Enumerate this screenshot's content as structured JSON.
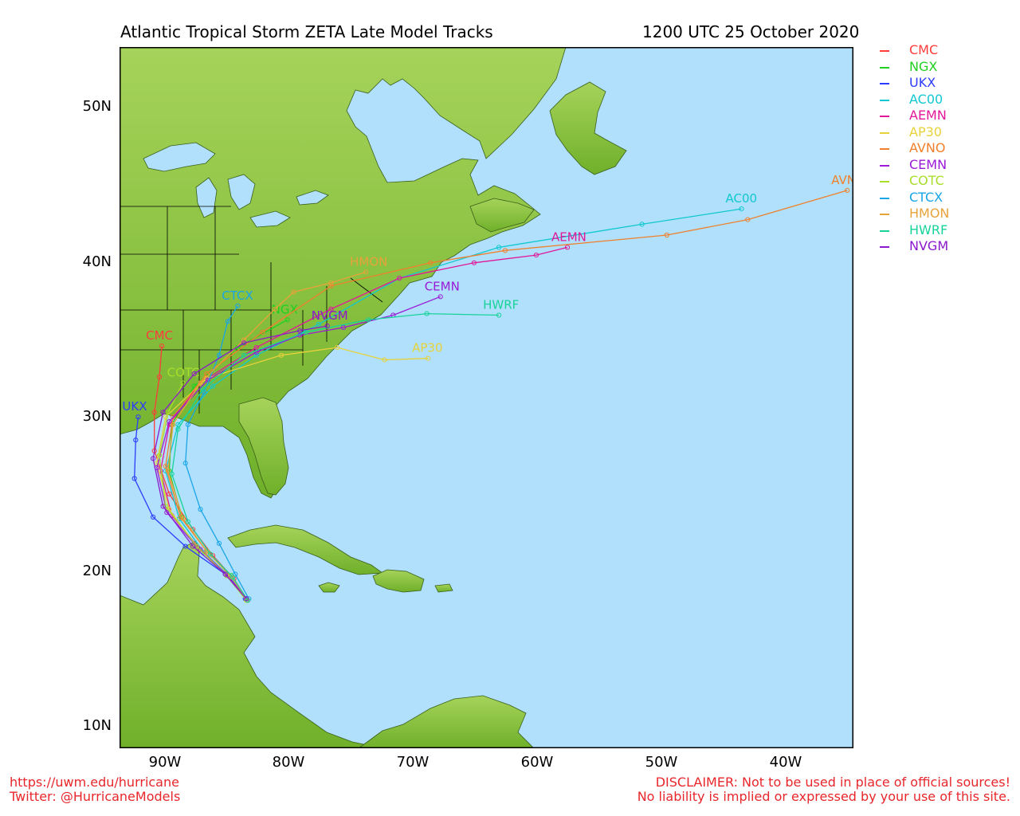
{
  "header": {
    "title": "Atlantic Tropical Storm ZETA Late Model Tracks",
    "datetime": "1200 UTC 25 October 2020"
  },
  "axes": {
    "lat_labels": [
      "10N",
      "20N",
      "30N",
      "40N",
      "50N"
    ],
    "lon_labels": [
      "90W",
      "80W",
      "70W",
      "60W",
      "50W",
      "40W"
    ],
    "lat_range": [
      8.5,
      54
    ],
    "lon_range": [
      -93.5,
      -34.5
    ]
  },
  "colors": {
    "ocean": "#b0e0fb",
    "land": "#8cc63e",
    "border": "#000000"
  },
  "legend": [
    {
      "name": "CMC",
      "color": "#ff3b3b"
    },
    {
      "name": "NGX",
      "color": "#1fd01f"
    },
    {
      "name": "UKX",
      "color": "#2b3cff"
    },
    {
      "name": "AC00",
      "color": "#10c8cf"
    },
    {
      "name": "AEMN",
      "color": "#e2179a"
    },
    {
      "name": "AP30",
      "color": "#e8d23a"
    },
    {
      "name": "AVNO",
      "color": "#f0802c"
    },
    {
      "name": "CEMN",
      "color": "#9a1ad8"
    },
    {
      "name": "COTC",
      "color": "#a8dd2a"
    },
    {
      "name": "CTCX",
      "color": "#19a5e6"
    },
    {
      "name": "HMON",
      "color": "#e8a23a"
    },
    {
      "name": "HWRF",
      "color": "#17d39a"
    },
    {
      "name": "NVGM",
      "color": "#8a18cc"
    }
  ],
  "model_tracks": [
    {
      "model": "CMC",
      "color": "#ff3b3b",
      "label": "CMC",
      "points": [
        [
          18.1,
          -83.2
        ],
        [
          19.5,
          -84.3
        ],
        [
          21.0,
          -86.0
        ],
        [
          22.7,
          -87.6
        ],
        [
          25.0,
          -89.5
        ],
        [
          27.8,
          -90.7
        ],
        [
          30.3,
          -90.7
        ],
        [
          32.6,
          -90.3
        ],
        [
          34.6,
          -90.1
        ]
      ]
    },
    {
      "model": "NGX",
      "color": "#1fd01f",
      "label": "NGX",
      "points": [
        [
          18.2,
          -83.3
        ],
        [
          19.7,
          -84.5
        ],
        [
          21.3,
          -86.5
        ],
        [
          23.5,
          -88.5
        ],
        [
          26.5,
          -89.5
        ],
        [
          29.5,
          -89.3
        ],
        [
          32.0,
          -87.5
        ],
        [
          34.5,
          -84.0
        ],
        [
          36.3,
          -80.0
        ]
      ]
    },
    {
      "model": "UKX",
      "color": "#2b3cff",
      "label": "UKX",
      "points": [
        [
          18.2,
          -83.4
        ],
        [
          19.8,
          -85.0
        ],
        [
          21.6,
          -88.2
        ],
        [
          23.5,
          -90.8
        ],
        [
          26.0,
          -92.3
        ],
        [
          28.5,
          -92.2
        ],
        [
          30.0,
          -92.0
        ]
      ]
    },
    {
      "model": "AC00",
      "color": "#10c8cf",
      "label": "AC00",
      "points": [
        [
          18.1,
          -83.2
        ],
        [
          19.6,
          -84.6
        ],
        [
          21.2,
          -86.7
        ],
        [
          23.4,
          -88.7
        ],
        [
          26.5,
          -89.8
        ],
        [
          29.5,
          -88.8
        ],
        [
          32.0,
          -86.0
        ],
        [
          34.0,
          -82.5
        ],
        [
          36.0,
          -77.5
        ],
        [
          39.0,
          -71.0
        ],
        [
          41.0,
          -63.0
        ],
        [
          42.5,
          -51.5
        ],
        [
          43.5,
          -43.5
        ]
      ]
    },
    {
      "model": "AEMN",
      "color": "#e2179a",
      "label": "AEMN",
      "points": [
        [
          18.2,
          -83.3
        ],
        [
          19.7,
          -84.8
        ],
        [
          21.4,
          -87.0
        ],
        [
          23.6,
          -89.3
        ],
        [
          26.5,
          -90.2
        ],
        [
          29.5,
          -89.5
        ],
        [
          32.2,
          -87.0
        ],
        [
          34.5,
          -82.5
        ],
        [
          37.0,
          -76.5
        ],
        [
          39.0,
          -71.0
        ],
        [
          40.0,
          -65.0
        ],
        [
          40.5,
          -60.0
        ],
        [
          41.0,
          -57.5
        ]
      ]
    },
    {
      "model": "AP30",
      "color": "#e8d23a",
      "label": "AP30",
      "points": [
        [
          18.1,
          -83.3
        ],
        [
          19.7,
          -84.8
        ],
        [
          21.5,
          -87.2
        ],
        [
          24.0,
          -89.5
        ],
        [
          27.0,
          -90.5
        ],
        [
          30.0,
          -89.8
        ],
        [
          32.5,
          -86.5
        ],
        [
          34.0,
          -80.5
        ],
        [
          34.5,
          -76.0
        ],
        [
          33.7,
          -72.2
        ],
        [
          33.8,
          -68.7
        ]
      ]
    },
    {
      "model": "AVNO",
      "color": "#f0802c",
      "label": "AVNO",
      "points": [
        [
          18.1,
          -83.2
        ],
        [
          19.6,
          -84.5
        ],
        [
          21.3,
          -86.5
        ],
        [
          23.5,
          -88.6
        ],
        [
          26.8,
          -89.8
        ],
        [
          30.0,
          -89.2
        ],
        [
          32.8,
          -86.5
        ],
        [
          35.5,
          -82.0
        ],
        [
          38.5,
          -76.5
        ],
        [
          40.0,
          -68.5
        ],
        [
          40.8,
          -62.5
        ],
        [
          41.8,
          -49.5
        ],
        [
          42.8,
          -43.0
        ],
        [
          44.7,
          -35.0
        ]
      ]
    },
    {
      "model": "CEMN",
      "color": "#9a1ad8",
      "label": "CEMN",
      "points": [
        [
          18.2,
          -83.3
        ],
        [
          19.7,
          -84.8
        ],
        [
          21.5,
          -87.2
        ],
        [
          23.8,
          -89.7
        ],
        [
          26.7,
          -90.5
        ],
        [
          29.7,
          -89.5
        ],
        [
          32.4,
          -86.4
        ],
        [
          34.2,
          -82.5
        ],
        [
          35.3,
          -79.0
        ],
        [
          35.8,
          -75.5
        ],
        [
          36.6,
          -71.5
        ],
        [
          37.8,
          -67.7
        ]
      ]
    },
    {
      "model": "COTC",
      "color": "#a8dd2a",
      "label": "COTC",
      "points": [
        [
          18.1,
          -83.3
        ],
        [
          19.7,
          -84.9
        ],
        [
          21.6,
          -87.3
        ],
        [
          24.2,
          -89.8
        ],
        [
          27.5,
          -90.3
        ],
        [
          30.3,
          -89.6
        ],
        [
          32.2,
          -88.4
        ]
      ]
    },
    {
      "model": "CTCX",
      "color": "#19a5e6",
      "label": "CTCX",
      "points": [
        [
          18.2,
          -83.1
        ],
        [
          19.8,
          -84.2
        ],
        [
          21.8,
          -85.5
        ],
        [
          24.0,
          -87.0
        ],
        [
          27.0,
          -88.2
        ],
        [
          29.5,
          -88.0
        ],
        [
          31.6,
          -86.7
        ],
        [
          34.0,
          -85.5
        ],
        [
          36.2,
          -84.8
        ],
        [
          37.2,
          -84.0
        ]
      ]
    },
    {
      "model": "HMON",
      "color": "#e8a23a",
      "label": "HMON",
      "points": [
        [
          18.1,
          -83.2
        ],
        [
          19.6,
          -84.5
        ],
        [
          21.2,
          -86.4
        ],
        [
          23.4,
          -88.4
        ],
        [
          26.5,
          -89.6
        ],
        [
          29.5,
          -89.2
        ],
        [
          32.2,
          -87.0
        ],
        [
          35.0,
          -83.5
        ],
        [
          37.0,
          -81.0
        ],
        [
          38.1,
          -79.5
        ],
        [
          38.7,
          -76.5
        ],
        [
          39.4,
          -73.7
        ]
      ]
    },
    {
      "model": "HWRF",
      "color": "#17d39a",
      "label": "HWRF",
      "points": [
        [
          18.1,
          -83.2
        ],
        [
          19.6,
          -84.4
        ],
        [
          21.1,
          -86.2
        ],
        [
          23.2,
          -88.0
        ],
        [
          26.3,
          -89.3
        ],
        [
          29.2,
          -88.8
        ],
        [
          31.8,
          -86.8
        ],
        [
          34.0,
          -83.5
        ],
        [
          35.5,
          -78.5
        ],
        [
          36.3,
          -73.5
        ],
        [
          36.7,
          -68.8
        ],
        [
          36.6,
          -63.0
        ]
      ]
    },
    {
      "model": "NVGM",
      "color": "#8a18cc",
      "label": "NVGM",
      "points": [
        [
          18.2,
          -83.3
        ],
        [
          19.8,
          -85.0
        ],
        [
          21.6,
          -87.6
        ],
        [
          24.2,
          -90.0
        ],
        [
          27.3,
          -90.8
        ],
        [
          30.3,
          -90.0
        ],
        [
          32.8,
          -87.5
        ],
        [
          34.8,
          -83.5
        ],
        [
          35.6,
          -79.0
        ],
        [
          35.9,
          -76.8
        ]
      ]
    }
  ]
}
